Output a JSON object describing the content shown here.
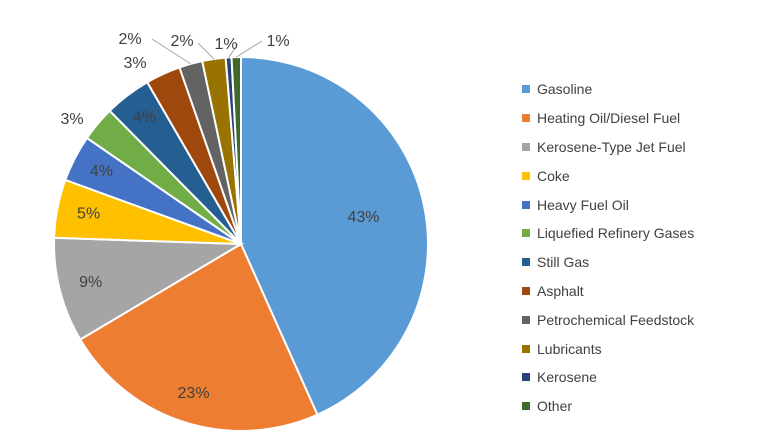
{
  "chart_data": {
    "type": "pie",
    "title": "",
    "start_angle_deg": 0,
    "direction": "clockwise",
    "slices": [
      {
        "name": "Gasoline",
        "value": 43,
        "label": "43%",
        "color": "#5b9bd5"
      },
      {
        "name": "Heating Oil/Diesel Fuel",
        "value": 23,
        "label": "23%",
        "color": "#ed7d31"
      },
      {
        "name": "Kerosene-Type Jet Fuel",
        "value": 9,
        "label": "9%",
        "color": "#a5a5a5"
      },
      {
        "name": "Coke",
        "value": 5,
        "label": "5%",
        "color": "#ffc000"
      },
      {
        "name": "Heavy Fuel Oil",
        "value": 4,
        "label": "4%",
        "color": "#4472c4"
      },
      {
        "name": "Liquefied Refinery Gases",
        "value": 3,
        "label": "3%",
        "color": "#70ad47"
      },
      {
        "name": "Still Gas",
        "value": 4,
        "label": "4%",
        "color": "#255e91"
      },
      {
        "name": "Asphalt",
        "value": 3,
        "label": "3%",
        "color": "#9e480e"
      },
      {
        "name": "Petrochemical Feedstock",
        "value": 2,
        "label": "2%",
        "color": "#636363"
      },
      {
        "name": "Lubricants",
        "value": 2,
        "label": "2%",
        "color": "#997300"
      },
      {
        "name": "Kerosene",
        "value": 0.5,
        "label": "1%",
        "color": "#264478"
      },
      {
        "name": "Other",
        "value": 0.8,
        "label": "1%",
        "color": "#43682b"
      }
    ],
    "legend_position": "right"
  }
}
